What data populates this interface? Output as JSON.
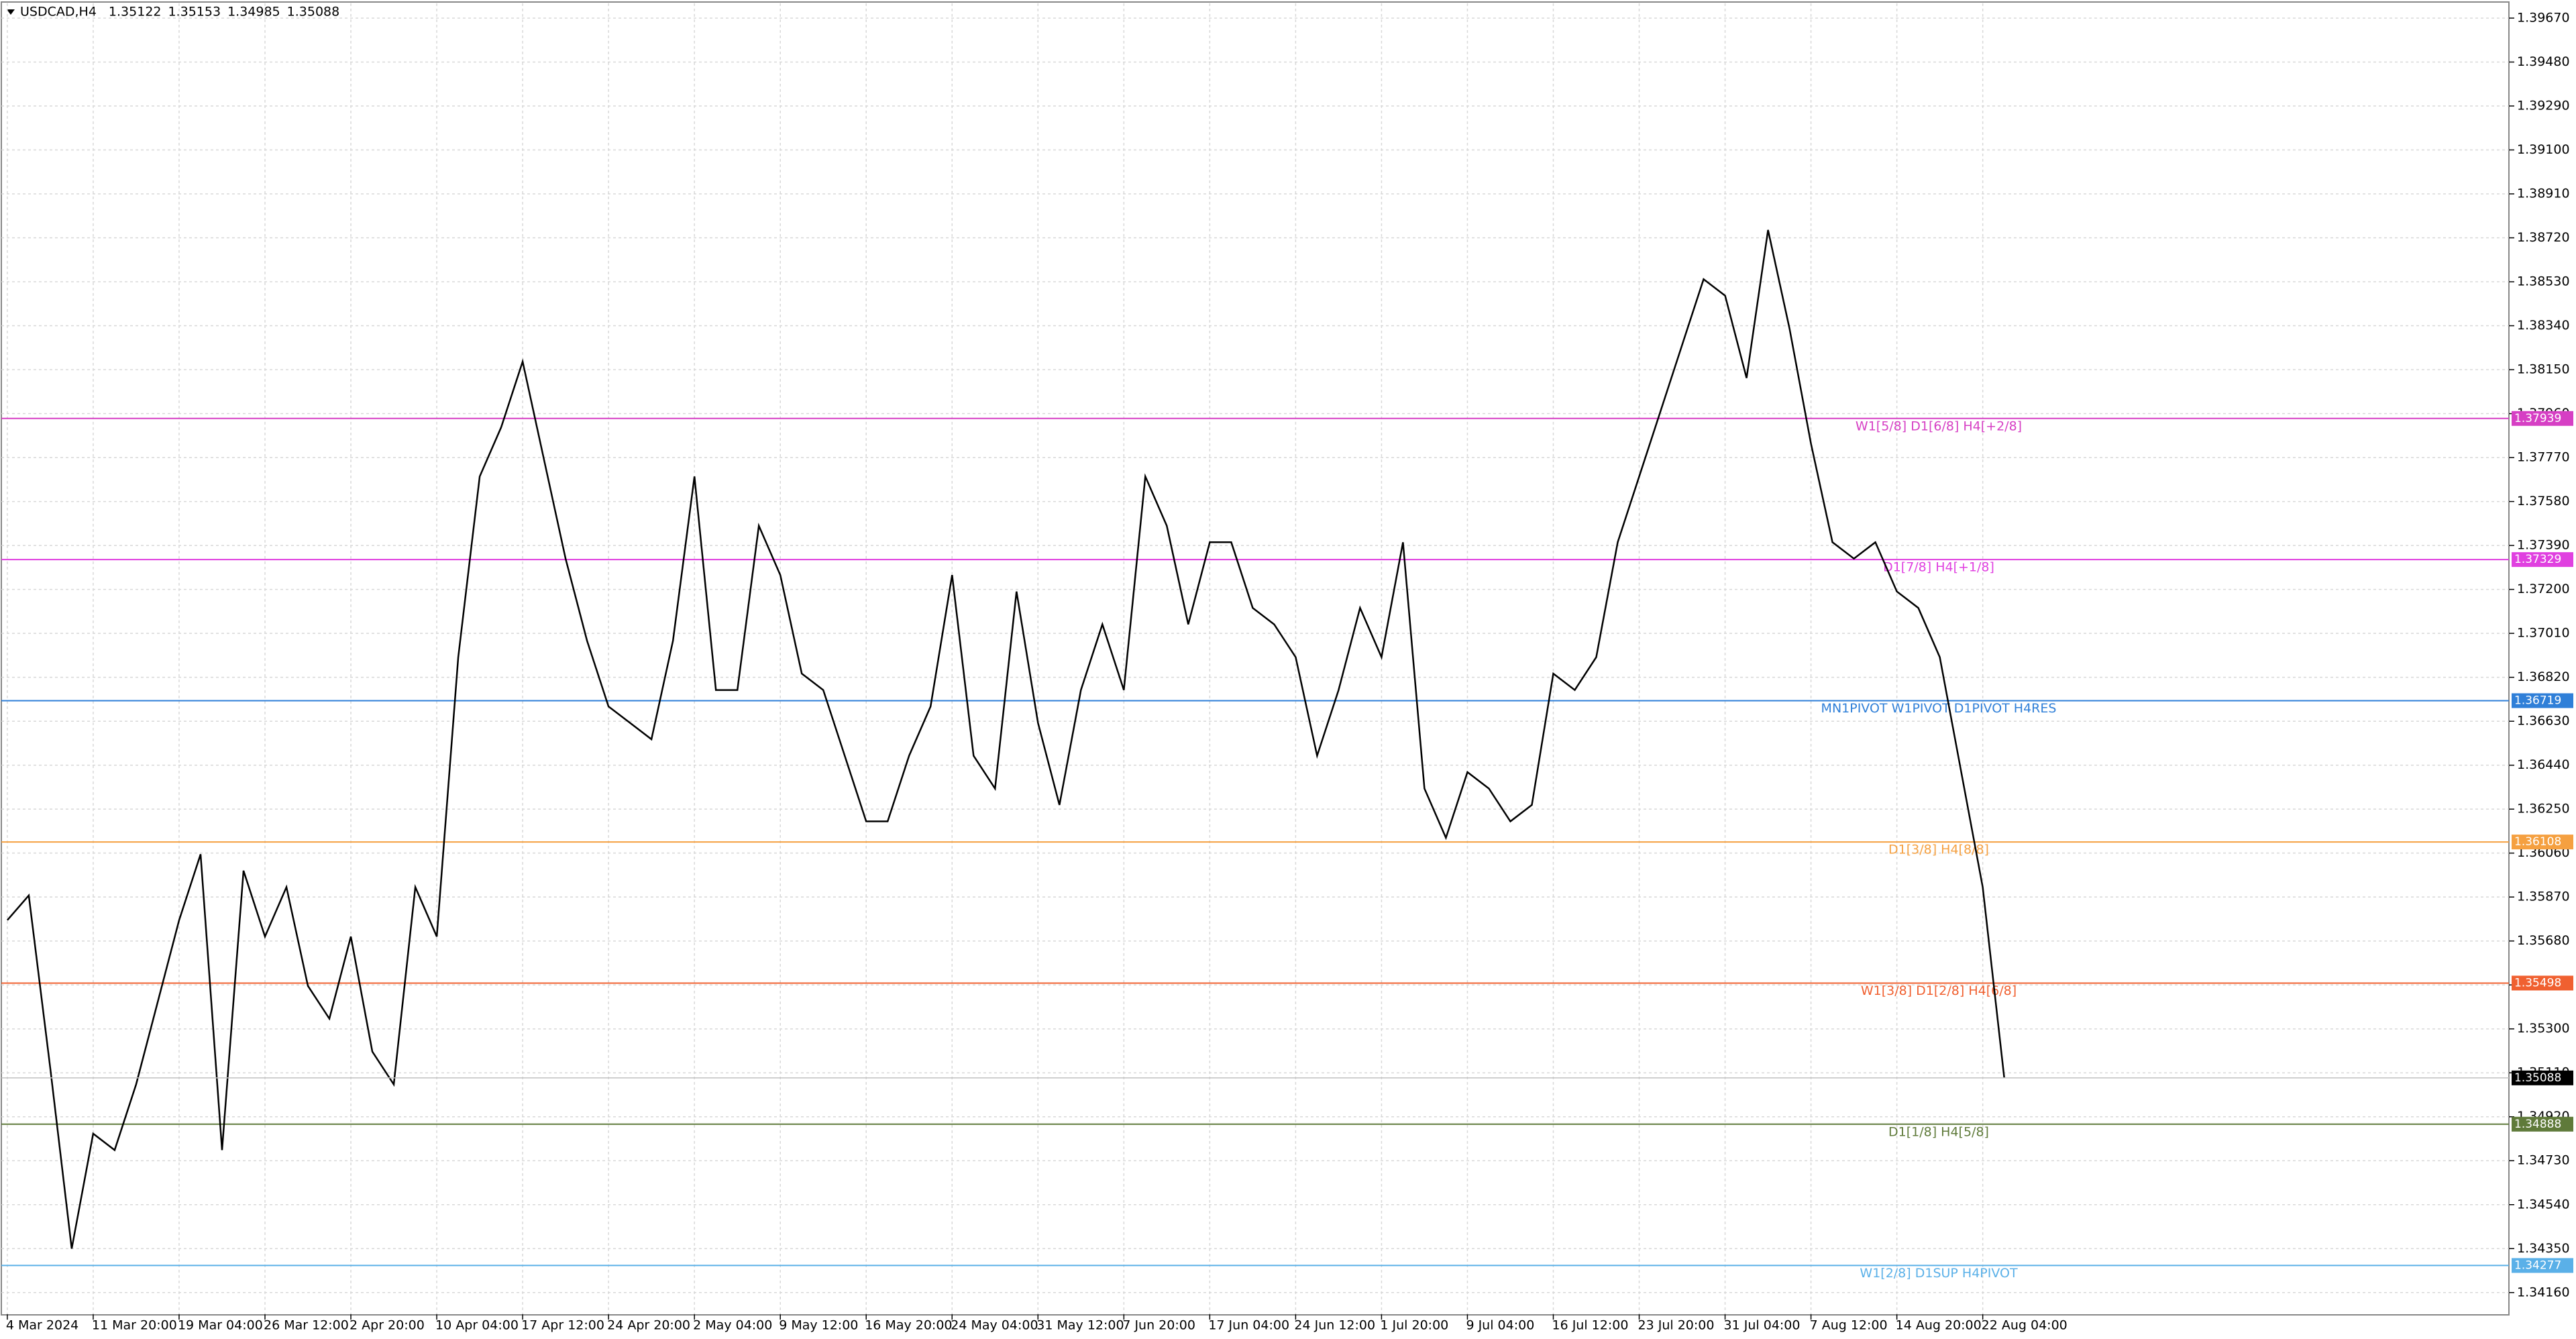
{
  "chart_data": {
    "type": "line",
    "title": "USDCAD,H4",
    "ohlc": [
      1.35122,
      1.35153,
      1.34985,
      1.35088
    ],
    "categories": [
      "4 Mar 2024",
      null,
      null,
      null,
      "11 Mar 20:00",
      null,
      null,
      null,
      "19 Mar 04:00",
      null,
      null,
      null,
      "26 Mar 12:00",
      null,
      null,
      null,
      "2 Apr 20:00",
      null,
      null,
      null,
      "10 Apr 04:00",
      null,
      null,
      null,
      "17 Apr 12:00",
      null,
      null,
      null,
      "24 Apr 20:00",
      null,
      null,
      null,
      "2 May 04:00",
      null,
      null,
      null,
      "9 May 12:00",
      null,
      null,
      null,
      "16 May 20:00",
      null,
      null,
      null,
      "24 May 04:00",
      null,
      null,
      null,
      "31 May 12:00",
      null,
      null,
      null,
      "7 Jun 20:00",
      null,
      null,
      null,
      "17 Jun 04:00",
      null,
      null,
      null,
      "24 Jun 12:00",
      null,
      null,
      null,
      "1 Jul 20:00",
      null,
      null,
      null,
      "9 Jul 04:00",
      null,
      null,
      null,
      "16 Jul 12:00",
      null,
      null,
      null,
      "23 Jul 20:00",
      null,
      null,
      null,
      "31 Jul 04:00",
      null,
      null,
      null,
      "7 Aug 12:00",
      null,
      null,
      null,
      "14 Aug 20:00",
      null,
      null,
      null,
      "22 Aug 04:00",
      null
    ],
    "values": [
      1.3577,
      1.35877,
      1.35131,
      1.3435,
      1.34847,
      1.34776,
      1.3506,
      1.35415,
      1.3577,
      1.36055,
      1.34776,
      1.35984,
      1.35699,
      1.35913,
      1.35486,
      1.35344,
      1.35699,
      1.35202,
      1.3506,
      1.35913,
      1.35699,
      1.36907,
      1.37688,
      1.37901,
      1.38185,
      1.37759,
      1.37333,
      1.36978,
      1.36694,
      1.36623,
      1.36552,
      1.36978,
      1.37688,
      1.36765,
      1.36765,
      1.37475,
      1.37262,
      1.36836,
      1.36765,
      1.36481,
      1.36197,
      1.36197,
      1.36481,
      1.36694,
      1.37262,
      1.36481,
      1.36339,
      1.37191,
      1.36623,
      1.36268,
      1.36765,
      1.37049,
      1.36765,
      1.37688,
      1.37475,
      1.37049,
      1.37404,
      1.37404,
      1.3712,
      1.37049,
      1.36907,
      1.36481,
      1.36765,
      1.3712,
      1.36907,
      1.37404,
      1.36339,
      1.36126,
      1.3641,
      1.36339,
      1.36197,
      1.36268,
      1.36836,
      1.36765,
      1.36907,
      1.37404,
      1.37688,
      1.37972,
      1.38257,
      1.38541,
      1.3847,
      1.38114,
      1.38754,
      1.38328,
      1.3783,
      1.37404,
      1.37333,
      1.37404,
      1.37191,
      1.3712,
      1.36907,
      1.3641,
      1.35913,
      1.35088
    ],
    "color": "#000000",
    "ylim": [
      1.34066,
      1.39734
    ],
    "yticks": [
      {
        "value": 1.3416,
        "label": "1.34160"
      },
      {
        "value": 1.3435,
        "label": "1.34350"
      },
      {
        "value": 1.3454,
        "label": "1.34540"
      },
      {
        "value": 1.3473,
        "label": "1.34730"
      },
      {
        "value": 1.3492,
        "label": "1.34920"
      },
      {
        "value": 1.3511,
        "label": "1.35110"
      },
      {
        "value": 1.353,
        "label": "1.35300"
      },
      {
        "value": 1.3549,
        "label": "1.35490"
      },
      {
        "value": 1.3568,
        "label": "1.35680"
      },
      {
        "value": 1.3587,
        "label": "1.35870"
      },
      {
        "value": 1.3606,
        "label": "1.36060"
      },
      {
        "value": 1.3625,
        "label": "1.36250"
      },
      {
        "value": 1.3644,
        "label": "1.36440"
      },
      {
        "value": 1.3663,
        "label": "1.36630"
      },
      {
        "value": 1.3682,
        "label": "1.36820"
      },
      {
        "value": 1.3701,
        "label": "1.37010"
      },
      {
        "value": 1.372,
        "label": "1.37200"
      },
      {
        "value": 1.3739,
        "label": "1.37390"
      },
      {
        "value": 1.3758,
        "label": "1.37580"
      },
      {
        "value": 1.3777,
        "label": "1.37770"
      },
      {
        "value": 1.3796,
        "label": "1.37960"
      },
      {
        "value": 1.3815,
        "label": "1.38150"
      },
      {
        "value": 1.3834,
        "label": "1.38340"
      },
      {
        "value": 1.3853,
        "label": "1.38530"
      },
      {
        "value": 1.3872,
        "label": "1.38720"
      },
      {
        "value": 1.3891,
        "label": "1.38910"
      },
      {
        "value": 1.391,
        "label": "1.39100"
      },
      {
        "value": 1.3929,
        "label": "1.39290"
      },
      {
        "value": 1.3948,
        "label": "1.39480"
      },
      {
        "value": 1.3967,
        "label": "1.39670"
      }
    ],
    "grid": true,
    "levels": [
      {
        "price": 1.37939,
        "label": "W1[5/8] D1[6/8] H4[+2/8]",
        "color": "#d63fc4"
      },
      {
        "price": 1.37329,
        "label": "D1[7/8] H4[+1/8]",
        "color": "#e040e0"
      },
      {
        "price": 1.36719,
        "label": "MN1PIVOT W1PIVOT D1PIVOT H4RES",
        "color": "#2f7fd8"
      },
      {
        "price": 1.36108,
        "label": "D1[3/8] H4[8/8]",
        "color": "#f5a040"
      },
      {
        "price": 1.35498,
        "label": "W1[3/8] D1[2/8] H4[6/8]",
        "color": "#f06030"
      },
      {
        "price": 1.34888,
        "label": "D1[1/8] H4[5/8]",
        "color": "#5f7a3a"
      },
      {
        "price": 1.34277,
        "label": "W1[2/8] D1SUP H4PIVOT",
        "color": "#5ab0e8"
      }
    ]
  }
}
